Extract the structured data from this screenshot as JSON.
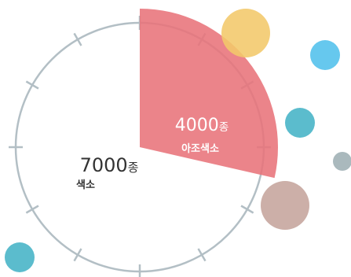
{
  "total": {
    "value": "7000",
    "unit": "종",
    "label": "색소"
  },
  "sector": {
    "value": "4000",
    "unit": "종",
    "label": "아조색소",
    "fraction": 0.5714,
    "color": "#e8737a"
  },
  "colors": {
    "ring": "#b3bfc5",
    "bubble_yellow": "#f2c86a",
    "bubble_blue": "#66c8ee",
    "bubble_teal": "#5bbccd",
    "bubble_gray": "#aab9bd",
    "bubble_brown": "#c5a49c"
  }
}
